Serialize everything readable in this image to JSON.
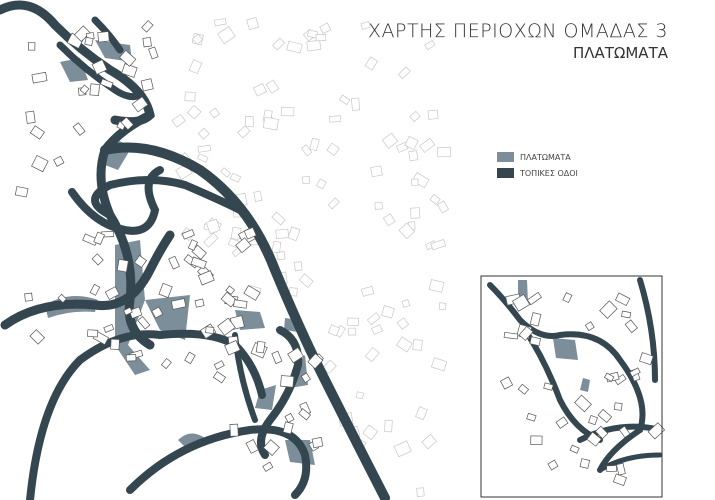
{
  "title": "ΧΑΡΤΗΣ ΠΕΡΙΟΧΩΝ ΟΜΑΔΑΣ 3",
  "subtitle": "ΠΛΑΤΩΜΑΤΑ",
  "legend": [
    {
      "label": "ΠΛΑΤΩΜΑΤΑ",
      "color": "#7b8e99"
    },
    {
      "label": "ΤΟΠΙΚΕΣ ΟΔΟΙ",
      "color": "#34464f"
    }
  ],
  "colors": {
    "plateau": "#7b8e99",
    "road": "#34464f",
    "building": "#555555",
    "faint": "#c8c8c8"
  }
}
